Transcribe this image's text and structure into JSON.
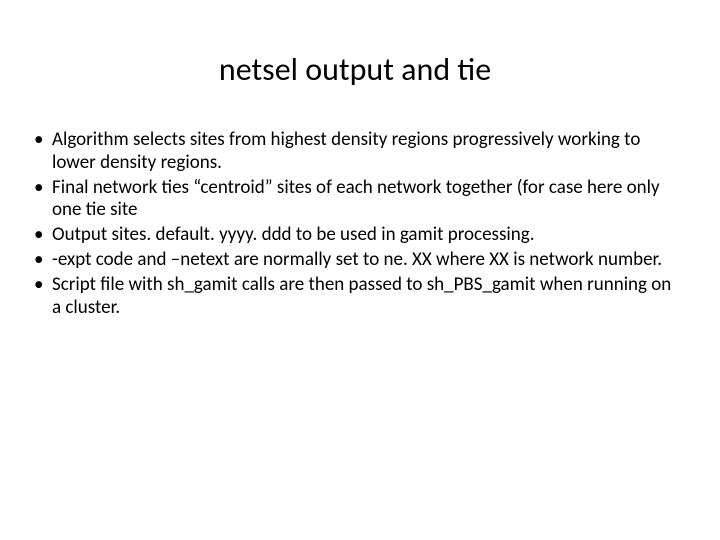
{
  "slide": {
    "title": "netsel output and tie",
    "bullets": [
      "Algorithm selects sites from highest density regions progressively working to lower density regions.",
      "Final network ties “centroid” sites of each network together (for case here only one tie site",
      "Output  sites. default. yyyy. ddd to be used in gamit processing.",
      "-expt code and –netext are normally set to ne. XX where XX is network number.",
      "Script file with sh_gamit calls are then passed to sh_PBS_gamit when running on a cluster."
    ]
  },
  "style": {
    "background_color": "#ffffff",
    "text_color": "#000000",
    "title_fontsize": 32,
    "body_fontsize": 19,
    "font_family": "Calibri"
  }
}
